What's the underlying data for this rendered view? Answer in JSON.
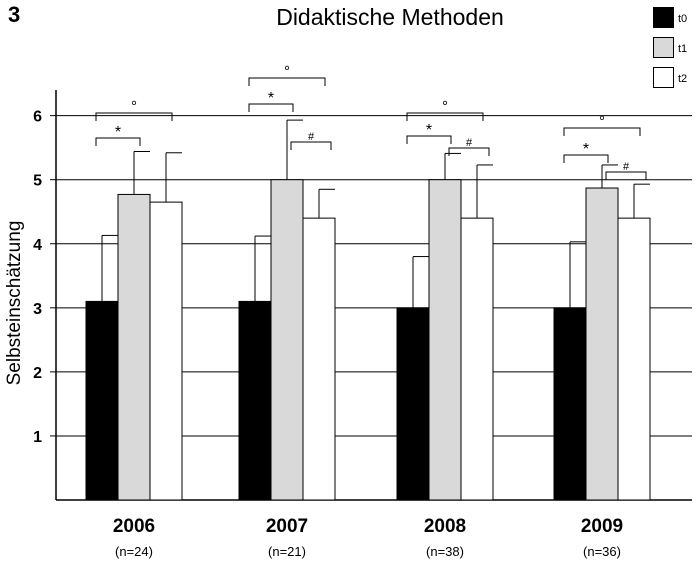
{
  "panel_number": "3",
  "colors": {
    "t0": "#000000",
    "t1": "#d9d9d9",
    "t2": "#ffffff"
  },
  "chart_data": {
    "type": "bar",
    "title": "Didaktische Methoden",
    "ylabel": "Selbsteinschätzung",
    "xlabel": "",
    "ylim": [
      0,
      6.4
    ],
    "yticks": [
      1,
      2,
      3,
      4,
      5,
      6
    ],
    "grid": true,
    "legend_position": "top-right",
    "categories": [
      "2006",
      "2007",
      "2008",
      "2009"
    ],
    "category_sublabels": [
      "(n=24)",
      "(n=21)",
      "(n=38)",
      "(n=36)"
    ],
    "series": [
      {
        "name": "t0",
        "values": [
          3.1,
          3.1,
          3.0,
          3.0
        ],
        "error": [
          1.03,
          1.02,
          0.8,
          1.03
        ]
      },
      {
        "name": "t1",
        "values": [
          4.77,
          5.0,
          5.0,
          4.87
        ],
        "error": [
          0.67,
          0.93,
          0.41,
          0.36
        ]
      },
      {
        "name": "t2",
        "values": [
          4.65,
          4.4,
          4.4,
          4.4
        ],
        "error": [
          0.77,
          0.45,
          0.83,
          0.53
        ]
      }
    ],
    "significance": [
      {
        "category": 0,
        "from": "t0",
        "to": "t1",
        "symbol": "*"
      },
      {
        "category": 0,
        "from": "t0",
        "to": "t2",
        "symbol": "°"
      },
      {
        "category": 1,
        "from": "t0",
        "to": "t1",
        "symbol": "*"
      },
      {
        "category": 1,
        "from": "t0",
        "to": "t2",
        "symbol": "°"
      },
      {
        "category": 1,
        "from": "t1",
        "to": "t2",
        "symbol": "#"
      },
      {
        "category": 2,
        "from": "t0",
        "to": "t1",
        "symbol": "*"
      },
      {
        "category": 2,
        "from": "t0",
        "to": "t2",
        "symbol": "°"
      },
      {
        "category": 2,
        "from": "t1",
        "to": "t2",
        "symbol": "#"
      },
      {
        "category": 3,
        "from": "t0",
        "to": "t1",
        "symbol": "*"
      },
      {
        "category": 3,
        "from": "t0",
        "to": "t2",
        "symbol": "°"
      },
      {
        "category": 3,
        "from": "t1",
        "to": "t2",
        "symbol": "#"
      }
    ]
  }
}
